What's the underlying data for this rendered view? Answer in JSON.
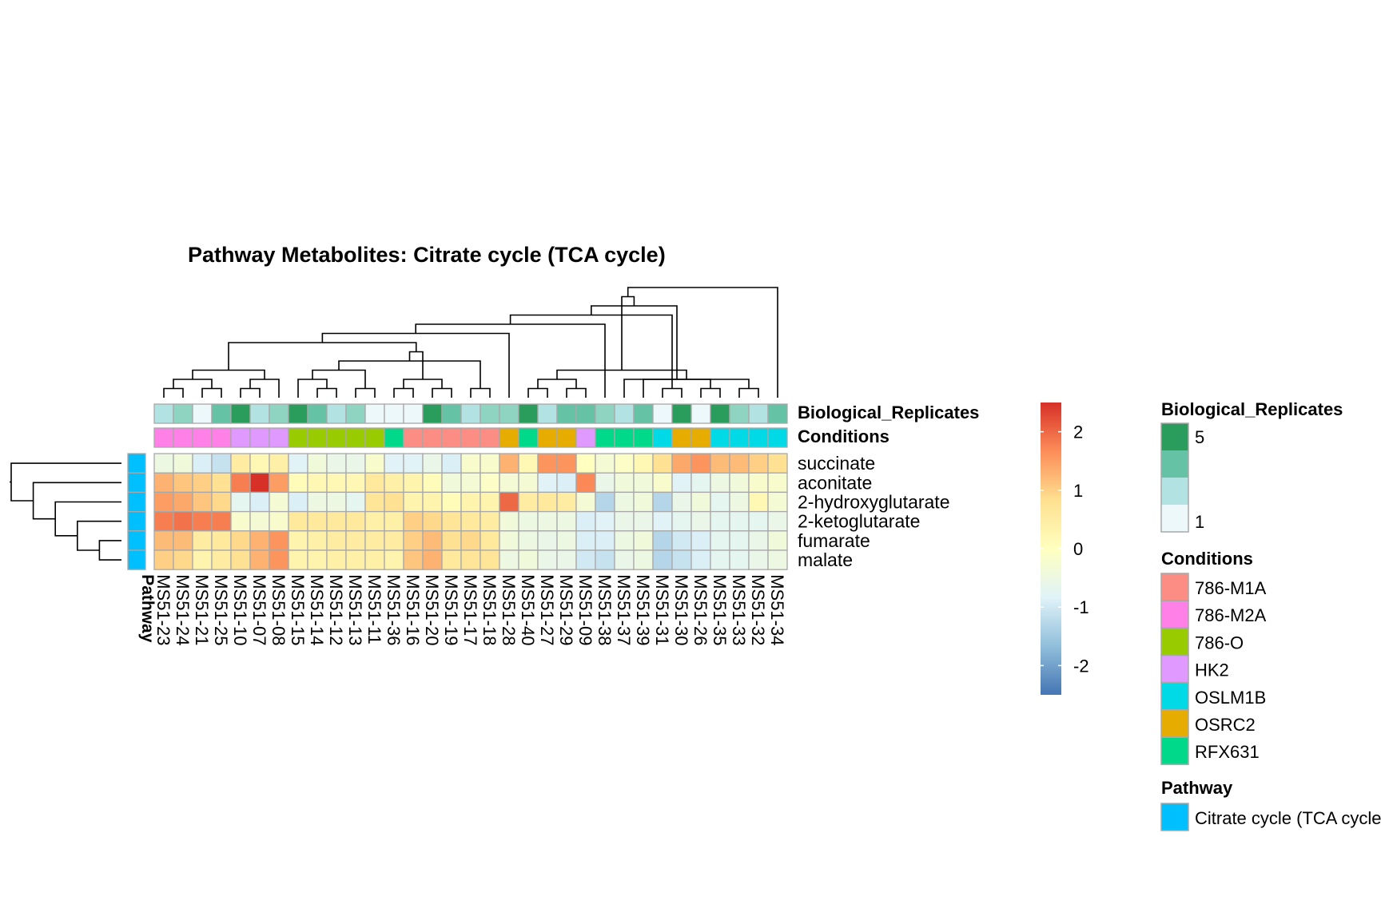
{
  "chart_data": {
    "type": "heatmap",
    "title": "Pathway  Metabolites:  Citrate cycle (TCA cycle)",
    "columns": [
      "MS51-23",
      "MS51-24",
      "MS51-21",
      "MS51-25",
      "MS51-10",
      "MS51-07",
      "MS51-08",
      "MS51-15",
      "MS51-14",
      "MS51-12",
      "MS51-13",
      "MS51-11",
      "MS51-36",
      "MS51-16",
      "MS51-20",
      "MS51-19",
      "MS51-17",
      "MS51-18",
      "MS51-28",
      "MS51-40",
      "MS51-27",
      "MS51-29",
      "MS51-09",
      "MS51-38",
      "MS51-37",
      "MS51-39",
      "MS51-31",
      "MS51-30",
      "MS51-26",
      "MS51-35",
      "MS51-33",
      "MS51-32",
      "MS51-34"
    ],
    "rows": [
      "succinate",
      "aconitate",
      "2-hydroxyglutarate",
      "2-ketoglutarate",
      "fumarate",
      "malate"
    ],
    "values": [
      [
        -0.5,
        -0.4,
        -0.9,
        -1.1,
        0.5,
        0.2,
        0.4,
        -0.8,
        -0.4,
        -0.6,
        -0.6,
        -0.2,
        -0.8,
        -0.8,
        -0.6,
        -0.9,
        -0.2,
        -0.2,
        1.3,
        0.2,
        1.6,
        1.6,
        0.0,
        -0.3,
        -0.1,
        0.2,
        0.8,
        1.4,
        1.6,
        1.2,
        1.2,
        1.0,
        0.8
      ],
      [
        1.3,
        1.1,
        1.0,
        0.8,
        1.8,
        2.5,
        1.5,
        0.1,
        0.2,
        0.2,
        0.2,
        0.6,
        0.4,
        0.3,
        0.1,
        -0.4,
        -0.3,
        -0.1,
        -0.3,
        -0.3,
        -0.8,
        -0.9,
        1.7,
        -0.6,
        -0.4,
        -0.4,
        -0.2,
        -0.8,
        -0.7,
        -0.5,
        -0.4,
        -0.2,
        -0.2
      ],
      [
        1.5,
        1.4,
        1.1,
        0.9,
        -0.7,
        -0.9,
        -0.3,
        -0.9,
        -0.5,
        -0.5,
        -0.7,
        0.7,
        0.8,
        0.3,
        0.3,
        0.1,
        0.3,
        0.3,
        2.0,
        0.5,
        0.6,
        0.5,
        -0.3,
        -1.3,
        -0.5,
        -0.4,
        -1.3,
        -0.6,
        -0.4,
        -0.7,
        -0.5,
        0.2,
        -0.3
      ],
      [
        1.8,
        1.9,
        1.8,
        1.8,
        -0.2,
        -0.3,
        -0.2,
        0.6,
        0.6,
        0.6,
        0.6,
        0.4,
        0.4,
        1.0,
        0.9,
        0.7,
        0.6,
        0.5,
        -0.4,
        -0.5,
        -0.5,
        -0.5,
        -0.9,
        -0.8,
        -0.6,
        -0.6,
        -0.8,
        -0.7,
        -0.6,
        -0.7,
        -0.7,
        -0.7,
        -0.6
      ],
      [
        1.2,
        1.2,
        0.5,
        0.6,
        0.9,
        1.3,
        1.6,
        0.3,
        0.4,
        0.5,
        0.5,
        0.5,
        0.5,
        1.0,
        1.2,
        0.8,
        0.9,
        0.6,
        -0.4,
        -0.5,
        -0.6,
        -0.5,
        -0.9,
        -0.9,
        -0.5,
        -0.4,
        -1.3,
        -1.0,
        -0.9,
        -0.7,
        -0.7,
        -0.6,
        -0.4
      ],
      [
        1.0,
        0.9,
        0.3,
        0.5,
        0.8,
        1.3,
        1.6,
        0.3,
        0.3,
        0.4,
        0.4,
        0.4,
        0.3,
        1.1,
        1.3,
        0.6,
        0.7,
        0.7,
        -0.5,
        -0.4,
        -0.6,
        -0.6,
        -1.0,
        -1.1,
        -0.6,
        -0.5,
        -1.3,
        -1.1,
        -0.9,
        -0.7,
        -0.7,
        -0.6,
        -0.5
      ]
    ],
    "color_scale": {
      "min": -2.5,
      "max": 2.5,
      "ticks": [
        2,
        1,
        0,
        -1,
        -2
      ],
      "tick_labels": [
        "2",
        "1",
        "0",
        "-1",
        "-2"
      ],
      "colors": [
        "#4575b4",
        "#91bfdb",
        "#e0f3f8",
        "#ffffbf",
        "#fee090",
        "#fc8d59",
        "#d73027"
      ]
    },
    "annotations": {
      "col_tracks": [
        {
          "name": "Biological_Replicates",
          "values": [
            2,
            3,
            1,
            4,
            5,
            2,
            3,
            5,
            4,
            2,
            3,
            1,
            1,
            1,
            5,
            4,
            2,
            3,
            3,
            5,
            2,
            4,
            4,
            3,
            2,
            4,
            1,
            5,
            1,
            5,
            3,
            2,
            4
          ]
        },
        {
          "name": "Conditions",
          "values": [
            "786-M2A",
            "786-M2A",
            "786-M2A",
            "786-M2A",
            "HK2",
            "HK2",
            "HK2",
            "786-O",
            "786-O",
            "786-O",
            "786-O",
            "786-O",
            "RFX631",
            "786-M1A",
            "786-M1A",
            "786-M1A",
            "786-M1A",
            "786-M1A",
            "OSRC2",
            "RFX631",
            "OSRC2",
            "OSRC2",
            "HK2",
            "RFX631",
            "RFX631",
            "RFX631",
            "OSLM1B",
            "OSRC2",
            "OSRC2",
            "OSLM1B",
            "OSLM1B",
            "OSLM1B",
            "OSLM1B"
          ]
        }
      ],
      "row_track": {
        "name": "Pathway",
        "value": "Citrate cycle (TCA cycle)"
      }
    },
    "legend": {
      "replicates": {
        "title": "Biological_Replicates",
        "label_high": "5",
        "label_low": "1",
        "colors": [
          "#2a9d5c",
          "#66c2a4",
          "#b2e2e2",
          "#edf8fb"
        ],
        "value_colors": {
          "1": "#edf8fb",
          "2": "#b2e2e2",
          "3": "#8fd3c1",
          "4": "#66c2a4",
          "5": "#2a9d5c"
        }
      },
      "conditions": {
        "title": "Conditions",
        "items": [
          {
            "label": "786-M1A",
            "color": "#fc8d84"
          },
          {
            "label": "786-M2A",
            "color": "#ff80e6"
          },
          {
            "label": "786-O",
            "color": "#99cc00"
          },
          {
            "label": "HK2",
            "color": "#df99ff"
          },
          {
            "label": "OSLM1B",
            "color": "#00d9e6"
          },
          {
            "label": "OSRC2",
            "color": "#e6ac00"
          },
          {
            "label": "RFX631",
            "color": "#00d98a"
          }
        ]
      },
      "pathway": {
        "title": "Pathway",
        "items": [
          {
            "label": "Citrate cycle (TCA cycle)",
            "color": "#00bfff"
          }
        ]
      }
    },
    "dendrogram": {
      "columns": [
        [
          0,
          1
        ],
        [
          2,
          3
        ],
        [
          -1,
          -2
        ],
        [
          4,
          5
        ],
        [
          -4,
          6
        ],
        [
          -3,
          -5
        ],
        [
          8,
          9
        ],
        [
          10,
          11
        ],
        [
          12,
          13
        ],
        [
          14,
          15
        ],
        [
          -9,
          -10
        ],
        [
          7,
          -7
        ],
        [
          -8,
          -12
        ],
        [
          16,
          17
        ],
        [
          -14,
          -13
        ],
        [
          -15,
          -11
        ],
        [
          -16,
          -6
        ],
        [
          19,
          20
        ],
        [
          21,
          22
        ],
        [
          18,
          -17
        ],
        [
          -19,
          -18
        ],
        [
          -20,
          23
        ],
        [
          26,
          27
        ],
        [
          28,
          29
        ],
        [
          30,
          31
        ],
        [
          -23,
          -22
        ],
        [
          25,
          -24
        ],
        [
          -25,
          24
        ],
        [
          -26,
          -27
        ],
        [
          -21,
          -28
        ],
        [
          -30,
          -29
        ],
        [
          -31,
          32
        ]
      ],
      "rows": [
        [
          4,
          5
        ],
        [
          3,
          -1
        ],
        [
          2,
          -2
        ],
        [
          1,
          -3
        ],
        [
          0,
          -4
        ]
      ]
    },
    "ylabel": "",
    "xlabel": ""
  }
}
